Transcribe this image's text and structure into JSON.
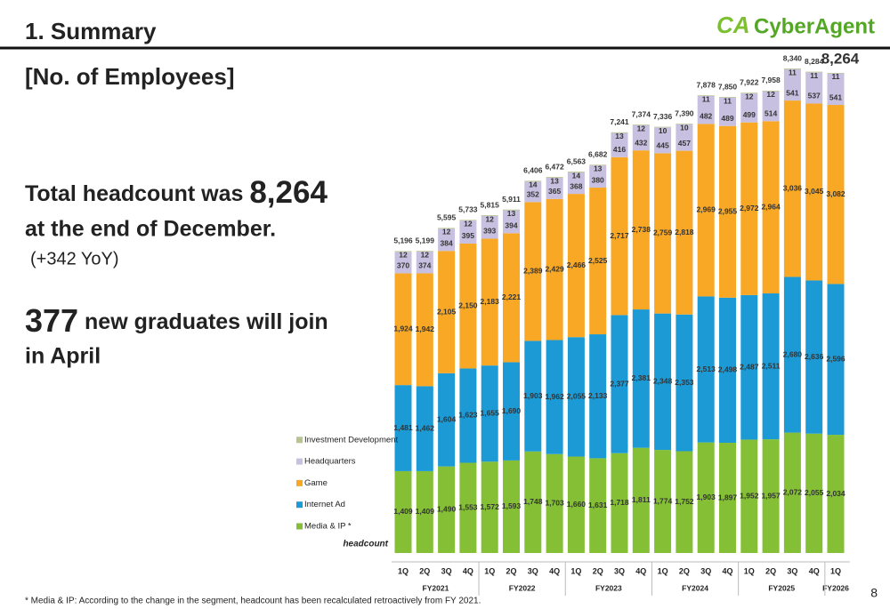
{
  "header": {
    "title": "1. Summary",
    "logo_mark": "CA",
    "logo": "CyberAgent",
    "page_number": "8"
  },
  "section_title": "[No. of Employees]",
  "highlights": [
    {
      "lines": [
        [
          "Total headcount was ",
          "8,264"
        ],
        [
          "at the end of December."
        ]
      ],
      "note": "(+342 YoY)"
    },
    {
      "lines": [
        [
          "377",
          " new graduates will join"
        ],
        [
          "in April"
        ]
      ]
    }
  ],
  "footnote": "* Media & IP: According to the change in the segment, headcount has been recalculated retroactively from FY 2021.",
  "chart_data": {
    "type": "stacked_bar",
    "unit_label": "headcount",
    "groups": [
      {
        "label": "FY2021",
        "categories": [
          "1Q",
          "2Q",
          "3Q",
          "4Q"
        ]
      },
      {
        "label": "FY2022",
        "categories": [
          "1Q",
          "2Q",
          "3Q",
          "4Q"
        ]
      },
      {
        "label": "FY2023",
        "categories": [
          "1Q",
          "2Q",
          "3Q",
          "4Q"
        ]
      },
      {
        "label": "FY2024",
        "categories": [
          "1Q",
          "2Q",
          "3Q",
          "4Q"
        ]
      },
      {
        "label": "FY2025",
        "categories": [
          "1Q",
          "2Q",
          "3Q",
          "4Q"
        ]
      },
      {
        "label": "FY2026",
        "categories": [
          "1Q"
        ]
      }
    ],
    "series": [
      {
        "name": "Media & IP *",
        "color": "#84bf35",
        "values": [
          1409,
          1409,
          1490,
          1553,
          1572,
          1593,
          1748,
          1703,
          1660,
          1631,
          1718,
          1811,
          1774,
          1752,
          1903,
          1897,
          1952,
          1957,
          2072,
          2055,
          2034
        ],
        "value_labels": [
          "1,409",
          "1,409",
          "1,490",
          "1,553",
          "1,572",
          "1,593",
          "1,748",
          "1,703",
          "1,660",
          "1,631",
          "1,718",
          "1,811",
          "1,774",
          "1,752",
          "1,903",
          "1,897",
          "1,952",
          "1,957",
          "2,072",
          "2,055",
          "2,034"
        ]
      },
      {
        "name": "Internet Ad",
        "color": "#1c9ad6",
        "values": [
          1481,
          1462,
          1604,
          1623,
          1655,
          1690,
          1903,
          1962,
          2055,
          2133,
          2377,
          2381,
          2348,
          2353,
          2513,
          2498,
          2487,
          2511,
          2680,
          2636,
          2596
        ],
        "value_labels": [
          "1,481",
          "1,462",
          "1,604",
          "1,623",
          "1,655",
          "1,690",
          "1,903",
          "1,962",
          "2,055",
          "2,133",
          "2,377",
          "2,381",
          "2,348",
          "2,353",
          "2,513",
          "2,498",
          "2,487",
          "2,511",
          "2,680",
          "2,636",
          "2,596"
        ]
      },
      {
        "name": "Game",
        "color": "#f8a824",
        "values": [
          1924,
          1942,
          2105,
          2150,
          2183,
          2221,
          2389,
          2429,
          2466,
          2525,
          2717,
          2738,
          2759,
          2818,
          2969,
          2955,
          2972,
          2964,
          3036,
          3045,
          3082
        ],
        "value_labels": [
          "1,924",
          "1,942",
          "2,105",
          "2,150",
          "2,183",
          "2,221",
          "2,389",
          "2,429",
          "2,466",
          "2,525",
          "2,717",
          "2,738",
          "2,759",
          "2,818",
          "2,969",
          "2,955",
          "2,972",
          "2,964",
          "3,036",
          "3,045",
          "3,082"
        ]
      },
      {
        "name": "Headquarters",
        "color": "#c8c0e0",
        "values": [
          370,
          374,
          384,
          395,
          393,
          394,
          352,
          365,
          368,
          380,
          416,
          432,
          445,
          457,
          482,
          489,
          499,
          514,
          541,
          537,
          541
        ]
      },
      {
        "name": "Investment Development",
        "color": "#b7c48e",
        "values": [
          12,
          12,
          12,
          12,
          12,
          13,
          14,
          13,
          14,
          13,
          13,
          12,
          10,
          10,
          11,
          11,
          12,
          12,
          11,
          11,
          11
        ]
      }
    ],
    "totals": [
      5196,
      5199,
      5595,
      5733,
      5815,
      5911,
      6406,
      6472,
      6563,
      6682,
      7241,
      7374,
      7336,
      7390,
      7878,
      7850,
      7922,
      7958,
      8340,
      8284,
      8264
    ],
    "totals_labels": [
      "5,196",
      "5,199",
      "5,595",
      "5,733",
      "5,815",
      "5,911",
      "6,406",
      "6,472",
      "6,563",
      "6,682",
      "7,241",
      "7,374",
      "7,336",
      "7,390",
      "7,878",
      "7,850",
      "7,922",
      "7,958",
      "8,340",
      "8,284",
      "8,264"
    ]
  }
}
